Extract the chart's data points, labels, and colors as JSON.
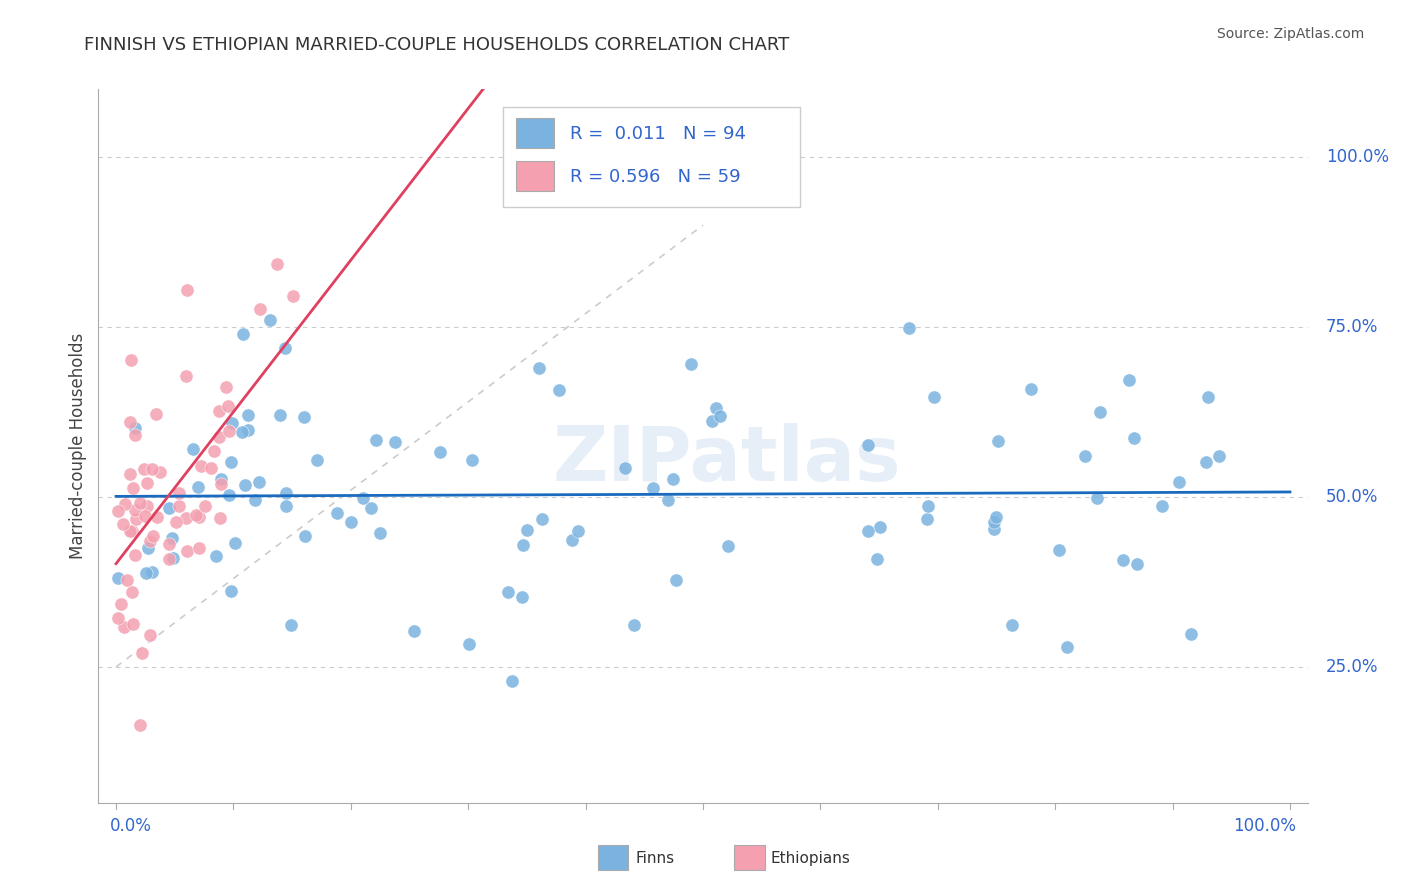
{
  "title": "FINNISH VS ETHIOPIAN MARRIED-COUPLE HOUSEHOLDS CORRELATION CHART",
  "source": "Source: ZipAtlas.com",
  "ylabel": "Married-couple Households",
  "legend_finn_R": "R =  0.011",
  "legend_finn_N": "N = 94",
  "legend_eth_R": "R = 0.596",
  "legend_eth_N": "N = 59",
  "finn_color": "#7ab3e0",
  "eth_color": "#f4a0b0",
  "finn_line_color": "#1a6bbf",
  "eth_line_color": "#e04060",
  "ref_line_color": "#cccccc",
  "yticks": [
    0.25,
    0.5,
    0.75,
    1.0
  ],
  "ytick_labels": [
    "25.0%",
    "50.0%",
    "75.0%",
    "100.0%"
  ],
  "watermark": "ZIPatlas",
  "bg_color": "#ffffff",
  "grid_color": "#cccccc",
  "legend_text_color": "#3366cc",
  "tick_label_color": "#3366cc",
  "title_color": "#333333",
  "source_color": "#555555"
}
